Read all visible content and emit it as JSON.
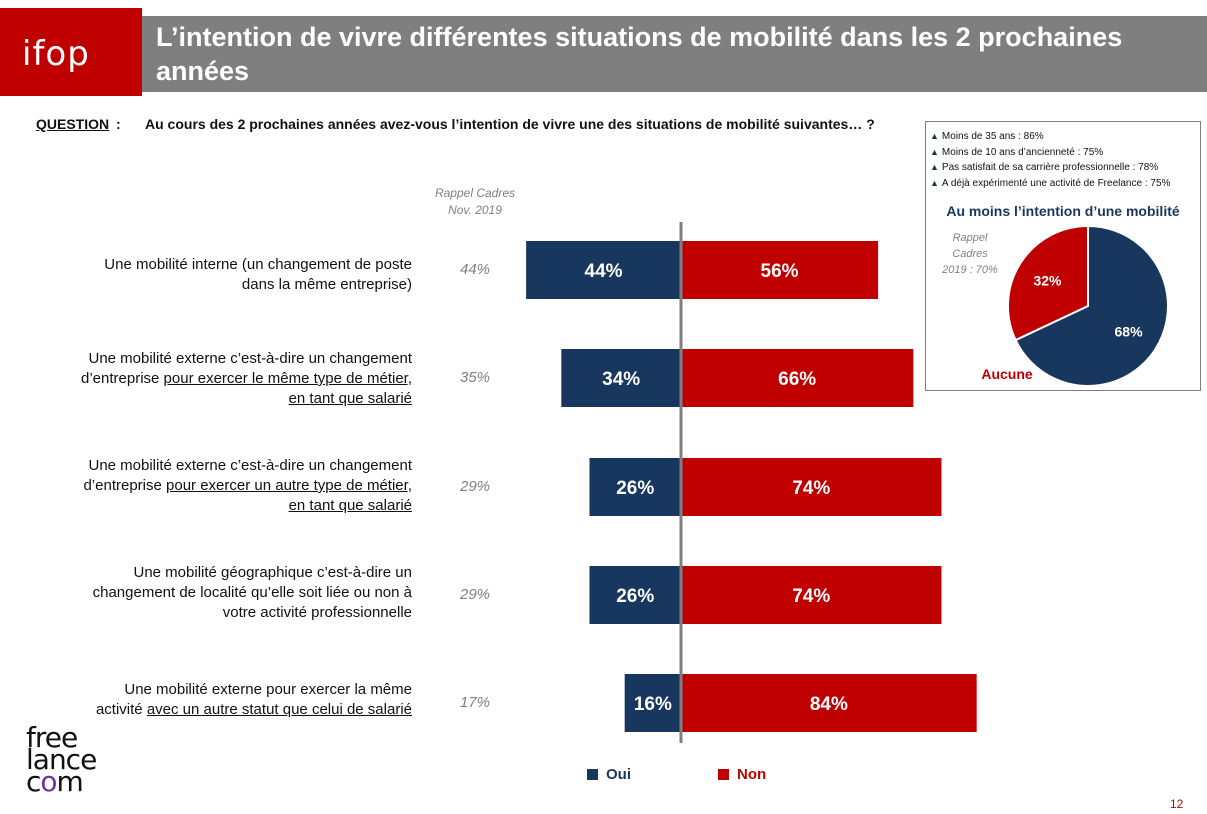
{
  "header": {
    "logo": "ifop",
    "title_line1": "L’intention de vivre différentes situations de mobilité dans les 2 prochaines",
    "title_line2": "années"
  },
  "question": {
    "label": "QUESTION",
    "colon": ":",
    "text": "Au cours des 2 prochaines années avez-vous l’intention de vivre une des situations de mobilité suivantes… ?"
  },
  "recall_header": {
    "line1": "Rappel Cadres",
    "line2": "Nov. 2019"
  },
  "rows": [
    {
      "lines": [
        [
          {
            "t": "Une mobilité interne (un changement de poste",
            "u": false
          }
        ],
        [
          {
            "t": "dans la même entreprise)",
            "u": false
          }
        ]
      ],
      "recall": "44%"
    },
    {
      "lines": [
        [
          {
            "t": "Une mobilité externe c’est-à-dire un changement",
            "u": false
          }
        ],
        [
          {
            "t": "d’entreprise ",
            "u": false
          },
          {
            "t": "pour exercer le même type de métier,",
            "u": true
          }
        ],
        [
          {
            "t": "en tant que salarié",
            "u": true
          }
        ]
      ],
      "recall": "35%"
    },
    {
      "lines": [
        [
          {
            "t": "Une mobilité externe c’est-à-dire un changement",
            "u": false
          }
        ],
        [
          {
            "t": "d’entreprise ",
            "u": false
          },
          {
            "t": "pour exercer un autre type de métier,",
            "u": true
          }
        ],
        [
          {
            "t": "en tant que salarié",
            "u": true
          }
        ]
      ],
      "recall": "29%"
    },
    {
      "lines": [
        [
          {
            "t": "Une mobilité géographique c’est-à-dire un",
            "u": false
          }
        ],
        [
          {
            "t": "changement de localité qu’elle soit liée ou non à",
            "u": false
          }
        ],
        [
          {
            "t": "votre activité professionnelle",
            "u": false
          }
        ]
      ],
      "recall": "29%"
    },
    {
      "lines": [
        [
          {
            "t": "Une mobilité externe pour exercer la même",
            "u": false
          }
        ],
        [
          {
            "t": "activité ",
            "u": false
          },
          {
            "t": "avec un autre statut que celui de salarié",
            "u": true
          }
        ]
      ],
      "recall": "17%"
    }
  ],
  "legend": {
    "oui": "Oui",
    "non": "Non"
  },
  "colors": {
    "oui": "#17375e",
    "non": "#c00000",
    "title_bar": "#7f7f7f",
    "logo_bg": "#c00000"
  },
  "pie_box": {
    "notes": [
      "Moins de 35 ans : 86%",
      "Moins de 10 ans d’ancienneté : 75%",
      "Pas satisfait de sa carrière professionnelle : 78%",
      "A déjà expérimenté une activité de Freelance : 75%"
    ],
    "title": "Au moins l’intention d’une mobilité",
    "recall_line1": "Rappel",
    "recall_line2": "Cadres",
    "recall_line3": "2019 : 70%"
  },
  "footer": {
    "page_number": "12",
    "brand_line1": "free",
    "brand_line2": "lance",
    "brand_line3_a": "c",
    "brand_line3_b": "o",
    "brand_line3_c": "m"
  },
  "chart_data": [
    {
      "type": "bar",
      "orientation": "horizontal-diverging",
      "categories": [
        "Une mobilité interne (un changement de poste dans la même entreprise)",
        "Une mobilité externe c’est-à-dire un changement d’entreprise pour exercer le même type de métier, en tant que salarié",
        "Une mobilité externe c’est-à-dire un changement d’entreprise pour exercer un autre type de métier, en tant que salarié",
        "Une mobilité géographique c’est-à-dire un changement de localité qu’elle soit liée ou non à votre activité professionnelle",
        "Une mobilité externe pour exercer la même activité avec un autre statut que celui de salarié"
      ],
      "series": [
        {
          "name": "Oui",
          "values": [
            44,
            34,
            26,
            26,
            16
          ],
          "labels": [
            "44%",
            "34%",
            "26%",
            "26%",
            "16%"
          ]
        },
        {
          "name": "Non",
          "values": [
            56,
            66,
            74,
            74,
            84
          ],
          "labels": [
            "56%",
            "66%",
            "74%",
            "74%",
            "84%"
          ]
        }
      ],
      "legend": "bottom"
    },
    {
      "type": "pie",
      "slices": [
        {
          "label": "68%",
          "value": 68,
          "color": "#17375e"
        },
        {
          "label": "32%",
          "value": 32,
          "color": "#c00000",
          "name": "Aucune"
        }
      ]
    }
  ]
}
